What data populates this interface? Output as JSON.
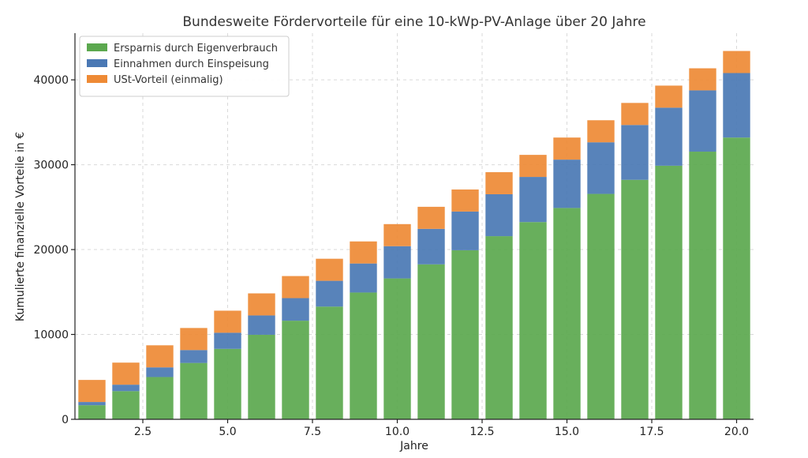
{
  "chart_data": {
    "type": "bar",
    "stacked": true,
    "title": "Bundesweite Fördervorteile für eine 10-kWp-PV-Anlage über 20 Jahre",
    "xlabel": "Jahre",
    "ylabel": "Kumulierte finanzielle Vorteile in €",
    "x": [
      1,
      2,
      3,
      4,
      5,
      6,
      7,
      8,
      9,
      10,
      11,
      12,
      13,
      14,
      15,
      16,
      17,
      18,
      19,
      20
    ],
    "xlim": [
      0.5,
      20.5
    ],
    "ylim": [
      0,
      45500
    ],
    "xticks": [
      2.5,
      5.0,
      7.5,
      10.0,
      12.5,
      15.0,
      17.5,
      20.0
    ],
    "xtick_labels": [
      "2.5",
      "5.0",
      "7.5",
      "10.0",
      "12.5",
      "15.0",
      "17.5",
      "20.0"
    ],
    "yticks": [
      0,
      10000,
      20000,
      30000,
      40000
    ],
    "ytick_labels": [
      "0",
      "10000",
      "20000",
      "30000",
      "40000"
    ],
    "grid": true,
    "legend_position": "top-left",
    "series": [
      {
        "name": "Ersparnis durch Eigenverbrauch",
        "color": "#5ba84e",
        "values": [
          1660,
          3320,
          4980,
          6640,
          8300,
          9960,
          11620,
          13280,
          14940,
          16600,
          18260,
          19920,
          21580,
          23240,
          24900,
          26560,
          28220,
          29880,
          31540,
          33200
        ]
      },
      {
        "name": "Einnahmen durch Einspeisung",
        "color": "#4a78b4",
        "values": [
          380,
          760,
          1140,
          1520,
          1900,
          2280,
          2660,
          3040,
          3420,
          3800,
          4180,
          4560,
          4940,
          5320,
          5700,
          6080,
          6460,
          6840,
          7220,
          7600
        ]
      },
      {
        "name": "USt-Vorteil (einmalig)",
        "color": "#ee8a35",
        "values": [
          2600,
          2600,
          2600,
          2600,
          2600,
          2600,
          2600,
          2600,
          2600,
          2600,
          2600,
          2600,
          2600,
          2600,
          2600,
          2600,
          2600,
          2600,
          2600,
          2600
        ]
      }
    ]
  }
}
